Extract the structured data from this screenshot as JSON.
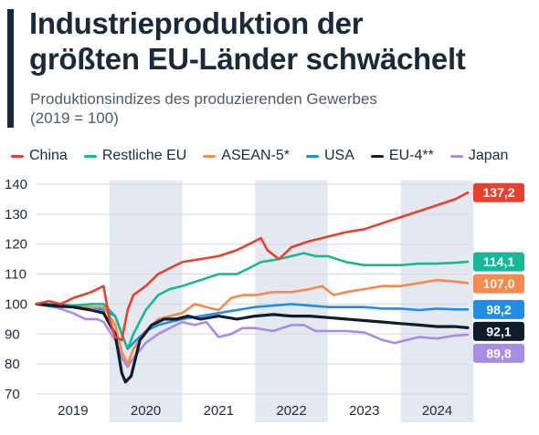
{
  "title_line1": "Industrieproduktion der",
  "title_line2": "größten EU-Länder schwächelt",
  "subtitle_line1": "Produktionsindizes des produzierenden Gewerbes",
  "subtitle_line2": "(2019 = 100)",
  "colors": {
    "China": "#e8402e",
    "Restliche EU": "#16b898",
    "ASEAN-5*": "#f58a4c",
    "USA": "#1f8fe6",
    "EU-4**": "#0f1d2b",
    "Japan": "#a98be8",
    "band": "#e4e9f1",
    "grid": "#d5d9de"
  },
  "chart_data": {
    "type": "line",
    "title": "Industrieproduktion der größten EU-Länder schwächelt",
    "subtitle": "Produktionsindizes des produzierenden Gewerbes (2019 = 100)",
    "xlabel": "",
    "ylabel": "",
    "ylim": [
      70,
      140
    ],
    "yticks": [
      70,
      80,
      90,
      100,
      110,
      120,
      130,
      140
    ],
    "xlim": [
      2019.0,
      2024.92
    ],
    "xtick_labels": [
      "2019",
      "2020",
      "2021",
      "2022",
      "2023",
      "2024"
    ],
    "shaded_years": [
      "2020",
      "2022",
      "2024"
    ],
    "grid": true,
    "legend_position": "top",
    "series": [
      {
        "name": "China",
        "end_label": "137,2",
        "points": [
          [
            2019.0,
            100
          ],
          [
            2019.17,
            101
          ],
          [
            2019.33,
            100
          ],
          [
            2019.5,
            102
          ],
          [
            2019.75,
            104
          ],
          [
            2019.92,
            106
          ],
          [
            2020.0,
            95
          ],
          [
            2020.08,
            89
          ],
          [
            2020.17,
            88
          ],
          [
            2020.25,
            98
          ],
          [
            2020.33,
            103
          ],
          [
            2020.5,
            106
          ],
          [
            2020.67,
            110
          ],
          [
            2020.83,
            112
          ],
          [
            2021.0,
            114
          ],
          [
            2021.25,
            115
          ],
          [
            2021.5,
            116
          ],
          [
            2021.75,
            118
          ],
          [
            2021.92,
            120
          ],
          [
            2022.08,
            122
          ],
          [
            2022.17,
            118
          ],
          [
            2022.33,
            115
          ],
          [
            2022.5,
            119
          ],
          [
            2022.75,
            121
          ],
          [
            2022.92,
            122
          ],
          [
            2023.08,
            123
          ],
          [
            2023.25,
            124
          ],
          [
            2023.5,
            125
          ],
          [
            2023.75,
            127
          ],
          [
            2024.0,
            129
          ],
          [
            2024.25,
            131
          ],
          [
            2024.5,
            133
          ],
          [
            2024.75,
            135
          ],
          [
            2024.92,
            137.2
          ]
        ]
      },
      {
        "name": "Restliche EU",
        "end_label": "114,1",
        "points": [
          [
            2019.0,
            100
          ],
          [
            2019.25,
            100
          ],
          [
            2019.5,
            99.5
          ],
          [
            2019.75,
            100
          ],
          [
            2019.92,
            100
          ],
          [
            2020.08,
            96
          ],
          [
            2020.17,
            90
          ],
          [
            2020.25,
            85
          ],
          [
            2020.33,
            90
          ],
          [
            2020.5,
            98
          ],
          [
            2020.67,
            103
          ],
          [
            2020.83,
            105
          ],
          [
            2021.0,
            106
          ],
          [
            2021.25,
            108
          ],
          [
            2021.5,
            110
          ],
          [
            2021.75,
            110
          ],
          [
            2021.92,
            112
          ],
          [
            2022.08,
            114
          ],
          [
            2022.33,
            115
          ],
          [
            2022.5,
            116
          ],
          [
            2022.67,
            117
          ],
          [
            2022.83,
            116
          ],
          [
            2023.0,
            116
          ],
          [
            2023.25,
            114
          ],
          [
            2023.5,
            113
          ],
          [
            2023.75,
            113
          ],
          [
            2024.0,
            113
          ],
          [
            2024.25,
            113.5
          ],
          [
            2024.5,
            113.5
          ],
          [
            2024.75,
            113.8
          ],
          [
            2024.92,
            114.1
          ]
        ]
      },
      {
        "name": "ASEAN-5*",
        "end_label": "107,0",
        "points": [
          [
            2019.0,
            100
          ],
          [
            2019.25,
            99.5
          ],
          [
            2019.5,
            99
          ],
          [
            2019.75,
            99
          ],
          [
            2019.92,
            99
          ],
          [
            2020.08,
            93
          ],
          [
            2020.17,
            84
          ],
          [
            2020.25,
            80
          ],
          [
            2020.33,
            85
          ],
          [
            2020.5,
            91
          ],
          [
            2020.67,
            95
          ],
          [
            2020.83,
            96
          ],
          [
            2021.0,
            97
          ],
          [
            2021.17,
            100
          ],
          [
            2021.33,
            99
          ],
          [
            2021.5,
            98
          ],
          [
            2021.67,
            102
          ],
          [
            2021.83,
            103
          ],
          [
            2022.0,
            103
          ],
          [
            2022.25,
            104
          ],
          [
            2022.5,
            104
          ],
          [
            2022.75,
            105
          ],
          [
            2022.92,
            106
          ],
          [
            2023.08,
            103
          ],
          [
            2023.25,
            104
          ],
          [
            2023.5,
            105
          ],
          [
            2023.75,
            106
          ],
          [
            2024.0,
            106
          ],
          [
            2024.25,
            107
          ],
          [
            2024.5,
            108
          ],
          [
            2024.75,
            107.5
          ],
          [
            2024.92,
            107.0
          ]
        ]
      },
      {
        "name": "USA",
        "end_label": "98,2",
        "points": [
          [
            2019.0,
            100
          ],
          [
            2019.25,
            99
          ],
          [
            2019.5,
            99
          ],
          [
            2019.75,
            99
          ],
          [
            2019.92,
            98
          ],
          [
            2020.08,
            96
          ],
          [
            2020.17,
            90
          ],
          [
            2020.25,
            85
          ],
          [
            2020.33,
            87
          ],
          [
            2020.5,
            91
          ],
          [
            2020.67,
            93
          ],
          [
            2020.83,
            94
          ],
          [
            2021.0,
            95
          ],
          [
            2021.25,
            96
          ],
          [
            2021.5,
            97
          ],
          [
            2021.75,
            98
          ],
          [
            2022.0,
            99
          ],
          [
            2022.25,
            99.5
          ],
          [
            2022.5,
            100
          ],
          [
            2022.75,
            99.5
          ],
          [
            2023.0,
            99
          ],
          [
            2023.25,
            99
          ],
          [
            2023.5,
            99
          ],
          [
            2023.75,
            98.5
          ],
          [
            2024.0,
            98.5
          ],
          [
            2024.25,
            98
          ],
          [
            2024.5,
            98.5
          ],
          [
            2024.75,
            98.2
          ],
          [
            2024.92,
            98.2
          ]
        ]
      },
      {
        "name": "EU-4**",
        "end_label": "92,1",
        "points": [
          [
            2019.0,
            100
          ],
          [
            2019.25,
            99.5
          ],
          [
            2019.5,
            99
          ],
          [
            2019.75,
            98
          ],
          [
            2019.92,
            97
          ],
          [
            2020.08,
            90
          ],
          [
            2020.17,
            77
          ],
          [
            2020.22,
            74
          ],
          [
            2020.3,
            76
          ],
          [
            2020.42,
            88
          ],
          [
            2020.58,
            93
          ],
          [
            2020.75,
            95
          ],
          [
            2020.92,
            95
          ],
          [
            2021.08,
            96
          ],
          [
            2021.25,
            95
          ],
          [
            2021.5,
            96
          ],
          [
            2021.75,
            95
          ],
          [
            2022.0,
            96
          ],
          [
            2022.25,
            96.5
          ],
          [
            2022.5,
            96
          ],
          [
            2022.75,
            96
          ],
          [
            2023.0,
            95.5
          ],
          [
            2023.25,
            95
          ],
          [
            2023.5,
            94.5
          ],
          [
            2023.75,
            94
          ],
          [
            2024.0,
            93.5
          ],
          [
            2024.25,
            93
          ],
          [
            2024.5,
            92.5
          ],
          [
            2024.75,
            92.5
          ],
          [
            2024.92,
            92.1
          ]
        ]
      },
      {
        "name": "Japan",
        "end_label": "89,8",
        "points": [
          [
            2019.0,
            100
          ],
          [
            2019.25,
            99
          ],
          [
            2019.5,
            97
          ],
          [
            2019.67,
            95
          ],
          [
            2019.83,
            95
          ],
          [
            2019.92,
            94
          ],
          [
            2020.08,
            88
          ],
          [
            2020.17,
            82
          ],
          [
            2020.25,
            79
          ],
          [
            2020.33,
            82
          ],
          [
            2020.5,
            87
          ],
          [
            2020.67,
            90
          ],
          [
            2020.83,
            92
          ],
          [
            2021.0,
            94
          ],
          [
            2021.17,
            93
          ],
          [
            2021.33,
            94
          ],
          [
            2021.5,
            89
          ],
          [
            2021.67,
            90
          ],
          [
            2021.83,
            92
          ],
          [
            2022.0,
            92
          ],
          [
            2022.25,
            91
          ],
          [
            2022.5,
            93
          ],
          [
            2022.67,
            93
          ],
          [
            2022.83,
            91
          ],
          [
            2023.0,
            91
          ],
          [
            2023.25,
            91
          ],
          [
            2023.5,
            90.5
          ],
          [
            2023.75,
            88
          ],
          [
            2023.92,
            87
          ],
          [
            2024.08,
            88
          ],
          [
            2024.25,
            89
          ],
          [
            2024.5,
            88.5
          ],
          [
            2024.75,
            89.5
          ],
          [
            2024.92,
            89.8
          ]
        ]
      }
    ]
  }
}
